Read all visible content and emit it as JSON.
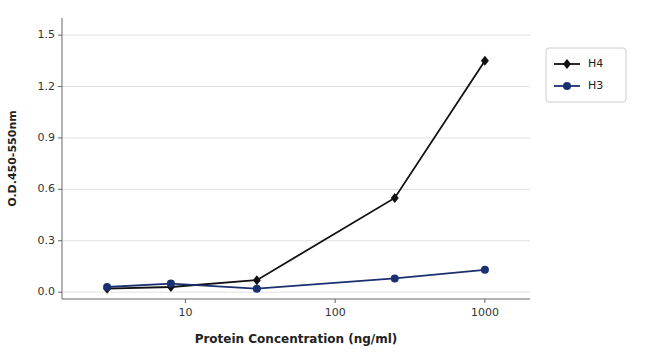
{
  "chart_data": {
    "type": "line",
    "x": [
      3,
      8,
      30,
      250,
      1000
    ],
    "series": [
      {
        "name": "H4",
        "color": "#111111",
        "marker": "diamond",
        "values": [
          0.02,
          0.03,
          0.07,
          0.55,
          1.35
        ]
      },
      {
        "name": "H3",
        "color": "#1a3070",
        "marker": "circle",
        "values": [
          0.03,
          0.05,
          0.02,
          0.08,
          0.13
        ]
      }
    ],
    "x_label": "Protein Concentration (ng/ml)",
    "y_label": "O.D.450-550nm",
    "log": "x",
    "xlim": [
      1.5,
      2000
    ],
    "xticks": [
      10,
      100,
      1000
    ],
    "ylim": [
      -0.04,
      1.6
    ],
    "yticks": [
      {
        "value": 0,
        "label": "0.0"
      },
      0.3,
      0.6,
      0.9,
      1.2,
      1.5
    ],
    "grid": true,
    "legend": "right"
  }
}
